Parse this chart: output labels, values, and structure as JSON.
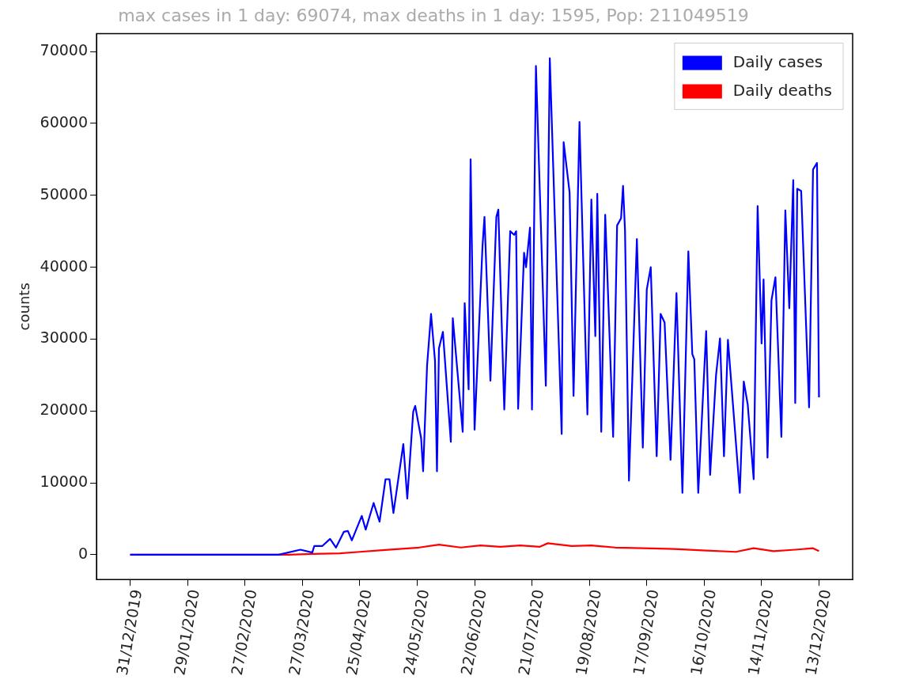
{
  "chart_data": {
    "type": "line",
    "title": "max cases in 1 day: 69074, max deaths in 1 day: 1595, Pop: 211049519",
    "ylabel": "counts",
    "xlim": [
      "2019-12-14",
      "2020-12-30"
    ],
    "xticks": [
      {
        "value": "2019-12-31",
        "label": "31/12/2019"
      },
      {
        "value": "2020-01-29",
        "label": "29/01/2020"
      },
      {
        "value": "2020-02-27",
        "label": "27/02/2020"
      },
      {
        "value": "2020-03-27",
        "label": "27/03/2020"
      },
      {
        "value": "2020-04-25",
        "label": "25/04/2020"
      },
      {
        "value": "2020-05-24",
        "label": "24/05/2020"
      },
      {
        "value": "2020-06-22",
        "label": "22/06/2020"
      },
      {
        "value": "2020-07-21",
        "label": "21/07/2020"
      },
      {
        "value": "2020-08-19",
        "label": "19/08/2020"
      },
      {
        "value": "2020-09-17",
        "label": "17/09/2020"
      },
      {
        "value": "2020-10-16",
        "label": "16/10/2020"
      },
      {
        "value": "2020-11-14",
        "label": "14/11/2020"
      },
      {
        "value": "2020-12-13",
        "label": "13/12/2020"
      }
    ],
    "ylim": [
      -3450,
      72500
    ],
    "yticks": [
      0,
      10000,
      20000,
      30000,
      40000,
      50000,
      60000,
      70000
    ],
    "grid": false,
    "legend": "top right",
    "marker": "none",
    "line_style": "solid",
    "series": [
      {
        "name": "Daily cases",
        "color": "#0000ff",
        "x": [
          "2019-12-31",
          "2020-03-15",
          "2020-03-26",
          "2020-04-01",
          "2020-04-02",
          "2020-04-06",
          "2020-04-10",
          "2020-04-13",
          "2020-04-17",
          "2020-04-19",
          "2020-04-21",
          "2020-04-26",
          "2020-04-28",
          "2020-05-02",
          "2020-05-05",
          "2020-05-08",
          "2020-05-10",
          "2020-05-12",
          "2020-05-17",
          "2020-05-19",
          "2020-05-22",
          "2020-05-23",
          "2020-05-26",
          "2020-05-27",
          "2020-05-29",
          "2020-05-31",
          "2020-06-02",
          "2020-06-03",
          "2020-06-04",
          "2020-06-06",
          "2020-06-10",
          "2020-06-11",
          "2020-06-16",
          "2020-06-17",
          "2020-06-19",
          "2020-06-20",
          "2020-06-22",
          "2020-06-26",
          "2020-06-27",
          "2020-06-30",
          "2020-07-03",
          "2020-07-04",
          "2020-07-07",
          "2020-07-10",
          "2020-07-12",
          "2020-07-13",
          "2020-07-14",
          "2020-07-17",
          "2020-07-18",
          "2020-07-20",
          "2020-07-21",
          "2020-07-23",
          "2020-07-28",
          "2020-07-30",
          "2020-08-05",
          "2020-08-06",
          "2020-08-09",
          "2020-08-11",
          "2020-08-14",
          "2020-08-18",
          "2020-08-20",
          "2020-08-22",
          "2020-08-23",
          "2020-08-25",
          "2020-08-27",
          "2020-08-31",
          "2020-09-02",
          "2020-09-04",
          "2020-09-05",
          "2020-09-06",
          "2020-09-08",
          "2020-09-12",
          "2020-09-15",
          "2020-09-17",
          "2020-09-19",
          "2020-09-22",
          "2020-09-24",
          "2020-09-26",
          "2020-09-29",
          "2020-10-02",
          "2020-10-05",
          "2020-10-08",
          "2020-10-10",
          "2020-10-11",
          "2020-10-13",
          "2020-10-17",
          "2020-10-19",
          "2020-10-22",
          "2020-10-24",
          "2020-10-26",
          "2020-10-28",
          "2020-11-03",
          "2020-11-05",
          "2020-11-07",
          "2020-11-10",
          "2020-11-12",
          "2020-11-14",
          "2020-11-15",
          "2020-11-17",
          "2020-11-19",
          "2020-11-21",
          "2020-11-24",
          "2020-11-26",
          "2020-11-28",
          "2020-11-30",
          "2020-12-01",
          "2020-12-02",
          "2020-12-04",
          "2020-12-08",
          "2020-12-10",
          "2020-12-12",
          "2020-12-13"
        ],
        "values": [
          0,
          0,
          700,
          300,
          1200,
          1200,
          2200,
          1000,
          3200,
          3300,
          2000,
          5400,
          3500,
          7200,
          4600,
          10500,
          10500,
          5800,
          15400,
          7800,
          19900,
          20700,
          16200,
          11600,
          26300,
          33500,
          27000,
          11600,
          28700,
          31000,
          15700,
          32900,
          17100,
          35000,
          23000,
          55000,
          17400,
          42900,
          47000,
          24200,
          47000,
          48000,
          20200,
          45000,
          44500,
          45000,
          20300,
          42000,
          40000,
          45500,
          20200,
          68000,
          23500,
          69074,
          16800,
          57400,
          50400,
          22100,
          60200,
          19500,
          49400,
          30400,
          50200,
          17100,
          47300,
          16400,
          45800,
          46800,
          51300,
          45100,
          10300,
          43900,
          14900,
          36900,
          40000,
          13700,
          33500,
          32300,
          13200,
          36400,
          8600,
          42200,
          27900,
          27200,
          8600,
          31100,
          11100,
          25000,
          30100,
          13700,
          29900,
          8600,
          24100,
          20900,
          10500,
          48500,
          29400,
          38300,
          13500,
          35400,
          38600,
          16400,
          47900,
          34300,
          52100,
          21100,
          50900,
          50600,
          20500,
          53600,
          54500,
          21900
        ]
      },
      {
        "name": "Daily deaths",
        "color": "#ff0000",
        "x": [
          "2019-12-31",
          "2020-03-20",
          "2020-04-01",
          "2020-04-15",
          "2020-04-25",
          "2020-05-05",
          "2020-05-15",
          "2020-05-25",
          "2020-06-04",
          "2020-06-15",
          "2020-06-25",
          "2020-07-05",
          "2020-07-15",
          "2020-07-25",
          "2020-07-29",
          "2020-08-10",
          "2020-08-20",
          "2020-09-01",
          "2020-09-15",
          "2020-10-01",
          "2020-10-15",
          "2020-11-01",
          "2020-11-10",
          "2020-11-20",
          "2020-12-01",
          "2020-12-10",
          "2020-12-13"
        ],
        "values": [
          0,
          0,
          100,
          200,
          400,
          600,
          800,
          1000,
          1400,
          1000,
          1300,
          1100,
          1300,
          1100,
          1595,
          1200,
          1300,
          1000,
          900,
          800,
          600,
          400,
          900,
          500,
          700,
          900,
          500
        ]
      }
    ]
  }
}
